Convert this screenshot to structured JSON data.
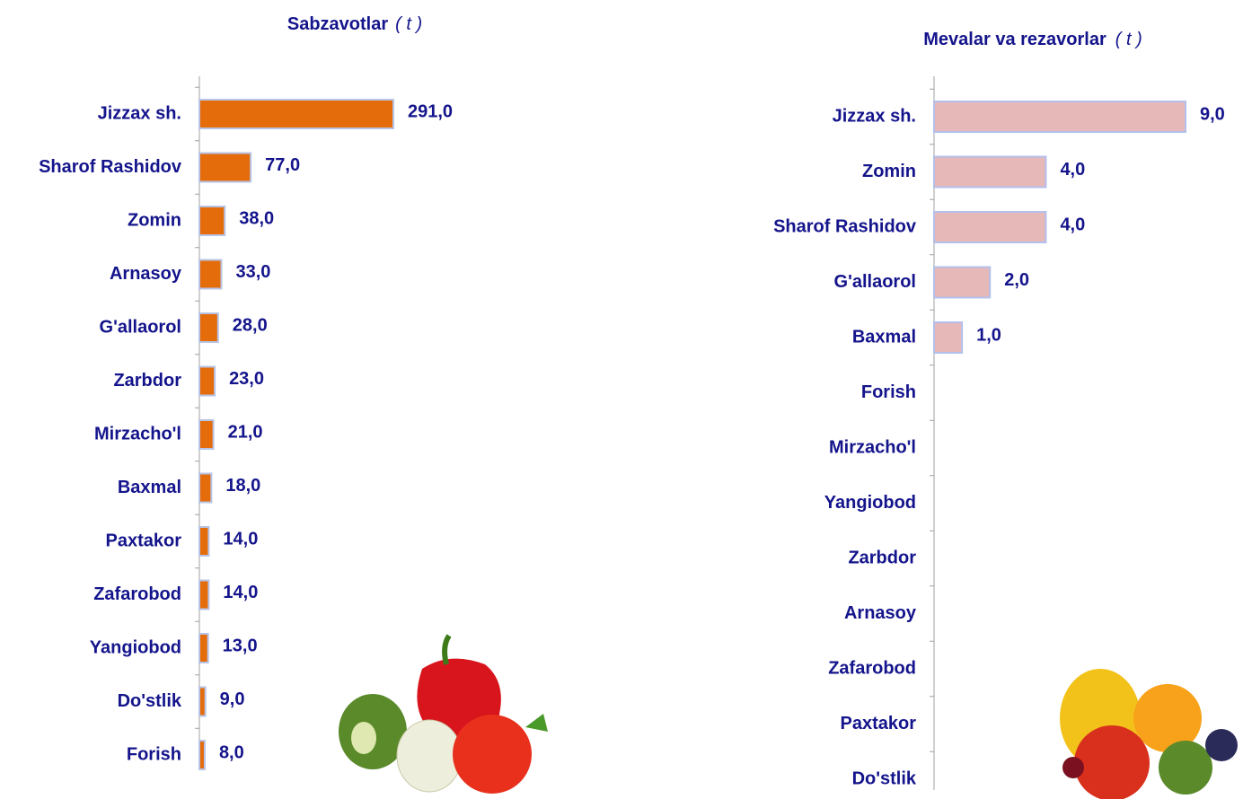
{
  "chart_data": [
    {
      "type": "bar",
      "orientation": "horizontal",
      "title": "Sabzavotlar",
      "unit": "( t )",
      "categories": [
        "Jizzax sh.",
        "Sharof Rashidov",
        "Zomin",
        "Arnasoy",
        "G'allaorol",
        "Zarbdor",
        "Mirzacho'l",
        "Baxmal",
        "Paxtakor",
        "Zafarobod",
        "Yangiobod",
        "Do'stlik",
        "Forish"
      ],
      "values": [
        291,
        77,
        38,
        33,
        28,
        23,
        21,
        18,
        14,
        14,
        13,
        9,
        8
      ],
      "value_labels": [
        "291,0",
        "77,0",
        "38,0",
        "33,0",
        "28,0",
        "23,0",
        "21,0",
        "18,0",
        "14,0",
        "14,0",
        "13,0",
        "9,0",
        "8,0"
      ],
      "color": "#e46c0a"
    },
    {
      "type": "bar",
      "orientation": "horizontal",
      "title": "Mevalar va rezavorlar",
      "unit": "( t )",
      "categories": [
        "Jizzax sh.",
        "Zomin",
        "Sharof Rashidov",
        "G'allaorol",
        "Baxmal",
        "Forish",
        "Mirzacho'l",
        "Yangiobod",
        "Zarbdor",
        "Arnasoy",
        "Zafarobod",
        "Paxtakor",
        "Do'stlik"
      ],
      "values": [
        9,
        4,
        4,
        2,
        1,
        null,
        null,
        null,
        null,
        null,
        null,
        null,
        null
      ],
      "value_labels": [
        "9,0",
        "4,0",
        "4,0",
        "2,0",
        "1,0",
        null,
        null,
        null,
        null,
        null,
        null,
        null,
        null
      ],
      "color": "#e6b9b8"
    }
  ]
}
